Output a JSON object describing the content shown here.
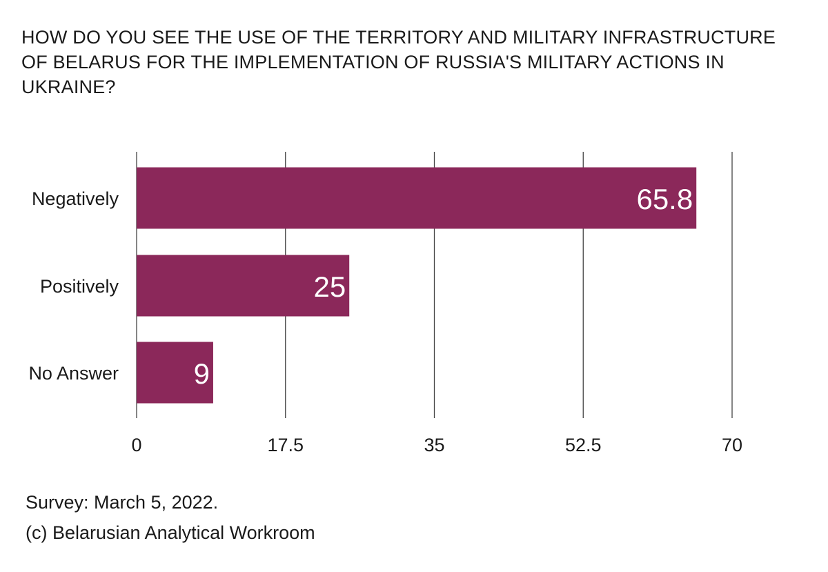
{
  "chart_data": {
    "type": "bar",
    "orientation": "horizontal",
    "title": "HOW DO YOU SEE THE USE OF THE TERRITORY AND MILITARY INFRASTRUCTURE OF BELARUS FOR THE IMPLEMENTATION OF RUSSIA'S MILITARY ACTIONS IN UKRAINE?",
    "categories": [
      "Negatively",
      "Positively",
      "No Answer"
    ],
    "values": [
      65.8,
      25,
      9
    ],
    "value_labels": [
      "65.8",
      "25",
      "9"
    ],
    "xlim": [
      0,
      70
    ],
    "x_ticks": [
      0,
      17.5,
      35,
      52.5,
      70
    ],
    "x_tick_labels": [
      "0",
      "17.5",
      "35",
      "52.5",
      "70"
    ],
    "grid": true,
    "bar_color": "#8b285a",
    "label_color": "#ffffff"
  },
  "footer": {
    "survey": "Survey: March 5, 2022.",
    "credit": "(c) Belarusian Analytical Workroom"
  }
}
